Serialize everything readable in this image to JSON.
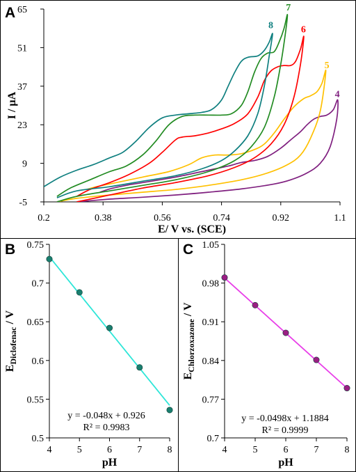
{
  "chart_data": [
    {
      "panel": "A",
      "type": "line",
      "xlabel": "E/ V vs. (SCE)",
      "ylabel": "I / µA",
      "xlim": [
        0.2,
        1.1
      ],
      "ylim": [
        -5,
        65
      ],
      "xticks": [
        "0.2",
        "0.38",
        "0.56",
        "0.74",
        "0.92",
        "1.1"
      ],
      "yticks": [
        "-5",
        "9",
        "23",
        "37",
        "51",
        "65"
      ],
      "grid": false,
      "series": [
        {
          "name": "4",
          "color": "#7f1f7f",
          "forward": [
            [
              0.3,
              -5.0
            ],
            [
              0.4,
              -4.0
            ],
            [
              0.5,
              -3.3
            ],
            [
              0.6,
              -2.5
            ],
            [
              0.7,
              -1.5
            ],
            [
              0.8,
              -0.3
            ],
            [
              0.9,
              1.5
            ],
            [
              0.95,
              3.0
            ],
            [
              1.0,
              5.5
            ],
            [
              1.04,
              9.0
            ],
            [
              1.07,
              15.0
            ],
            [
              1.09,
              25.0
            ],
            [
              1.093,
              32.0
            ]
          ],
          "reverse": [
            [
              1.093,
              32.0
            ],
            [
              1.08,
              28.5
            ],
            [
              1.06,
              26.5
            ],
            [
              1.04,
              26.0
            ],
            [
              1.02,
              25.0
            ],
            [
              1.0,
              23.0
            ],
            [
              0.98,
              20.5
            ],
            [
              0.95,
              17.5
            ],
            [
              0.92,
              14.5
            ],
            [
              0.88,
              11.5
            ],
            [
              0.84,
              10.0
            ],
            [
              0.8,
              9.3
            ],
            [
              0.76,
              8.0
            ],
            [
              0.7,
              6.5
            ],
            [
              0.6,
              4.0
            ],
            [
              0.5,
              2.0
            ],
            [
              0.45,
              1.0
            ],
            [
              0.4,
              -0.3
            ],
            [
              0.37,
              -1.5
            ]
          ]
        },
        {
          "name": "5",
          "color": "#ffc000",
          "forward": [
            [
              0.24,
              -5.0
            ],
            [
              0.3,
              -3.7
            ],
            [
              0.4,
              -2.5
            ],
            [
              0.5,
              -1.5
            ],
            [
              0.6,
              -0.5
            ],
            [
              0.7,
              1.0
            ],
            [
              0.8,
              3.0
            ],
            [
              0.88,
              5.5
            ],
            [
              0.94,
              8.5
            ],
            [
              0.98,
              12.0
            ],
            [
              1.01,
              18.0
            ],
            [
              1.04,
              28.0
            ],
            [
              1.057,
              42.5
            ]
          ],
          "reverse": [
            [
              1.057,
              42.5
            ],
            [
              1.045,
              38.0
            ],
            [
              1.03,
              35.0
            ],
            [
              1.01,
              33.5
            ],
            [
              0.99,
              32.5
            ],
            [
              0.96,
              29.5
            ],
            [
              0.93,
              25.0
            ],
            [
              0.9,
              20.0
            ],
            [
              0.87,
              16.0
            ],
            [
              0.84,
              14.0
            ],
            [
              0.8,
              12.5
            ],
            [
              0.76,
              12.0
            ],
            [
              0.72,
              12.0
            ],
            [
              0.68,
              11.0
            ],
            [
              0.64,
              8.5
            ],
            [
              0.58,
              6.0
            ],
            [
              0.5,
              4.0
            ],
            [
              0.42,
              2.0
            ],
            [
              0.36,
              0.5
            ],
            [
              0.33,
              -0.5
            ]
          ]
        },
        {
          "name": "6",
          "color": "#ff0000",
          "forward": [
            [
              0.3,
              -5.0
            ],
            [
              0.4,
              -2.5
            ],
            [
              0.5,
              0.0
            ],
            [
              0.6,
              2.0
            ],
            [
              0.7,
              4.5
            ],
            [
              0.78,
              7.5
            ],
            [
              0.84,
              11.0
            ],
            [
              0.89,
              16.0
            ],
            [
              0.93,
              23.0
            ],
            [
              0.96,
              33.0
            ],
            [
              0.98,
              45.0
            ],
            [
              0.99,
              55.0
            ]
          ],
          "reverse": [
            [
              0.99,
              55.0
            ],
            [
              0.98,
              50.5
            ],
            [
              0.965,
              46.0
            ],
            [
              0.95,
              44.5
            ],
            [
              0.93,
              44.5
            ],
            [
              0.91,
              44.0
            ],
            [
              0.89,
              42.5
            ],
            [
              0.87,
              39.0
            ],
            [
              0.85,
              33.0
            ],
            [
              0.82,
              27.0
            ],
            [
              0.78,
              23.5
            ],
            [
              0.74,
              21.5
            ],
            [
              0.7,
              20.0
            ],
            [
              0.66,
              19.0
            ],
            [
              0.62,
              18.5
            ],
            [
              0.6,
              17.5
            ],
            [
              0.56,
              13.0
            ],
            [
              0.52,
              9.0
            ],
            [
              0.46,
              5.0
            ],
            [
              0.4,
              2.0
            ],
            [
              0.34,
              -0.5
            ],
            [
              0.3,
              -3.0
            ]
          ]
        },
        {
          "name": "7",
          "color": "#228b22",
          "forward": [
            [
              0.24,
              -5.0
            ],
            [
              0.3,
              -3.0
            ],
            [
              0.4,
              -1.0
            ],
            [
              0.5,
              1.0
            ],
            [
              0.6,
              3.0
            ],
            [
              0.7,
              6.0
            ],
            [
              0.78,
              10.0
            ],
            [
              0.83,
              15.0
            ],
            [
              0.87,
              22.0
            ],
            [
              0.9,
              33.0
            ],
            [
              0.92,
              45.0
            ],
            [
              0.935,
              57.0
            ],
            [
              0.94,
              63.0
            ]
          ],
          "reverse": [
            [
              0.94,
              63.0
            ],
            [
              0.93,
              58.0
            ],
            [
              0.915,
              53.0
            ],
            [
              0.9,
              49.5
            ],
            [
              0.88,
              49.0
            ],
            [
              0.86,
              47.0
            ],
            [
              0.84,
              42.0
            ],
            [
              0.82,
              35.0
            ],
            [
              0.8,
              30.0
            ],
            [
              0.77,
              27.0
            ],
            [
              0.74,
              26.5
            ],
            [
              0.7,
              26.5
            ],
            [
              0.66,
              26.5
            ],
            [
              0.62,
              26.0
            ],
            [
              0.58,
              23.0
            ],
            [
              0.54,
              17.0
            ],
            [
              0.5,
              12.0
            ],
            [
              0.45,
              8.0
            ],
            [
              0.4,
              6.0
            ],
            [
              0.34,
              3.0
            ],
            [
              0.28,
              0.0
            ],
            [
              0.24,
              -3.0
            ]
          ]
        },
        {
          "name": "8",
          "color": "#0e7f7f",
          "forward": [
            [
              0.24,
              -3.5
            ],
            [
              0.3,
              -1.0
            ],
            [
              0.4,
              0.5
            ],
            [
              0.5,
              2.5
            ],
            [
              0.6,
              4.5
            ],
            [
              0.68,
              7.0
            ],
            [
              0.74,
              10.0
            ],
            [
              0.78,
              13.5
            ],
            [
              0.82,
              19.0
            ],
            [
              0.85,
              27.0
            ],
            [
              0.87,
              37.0
            ],
            [
              0.885,
              48.0
            ],
            [
              0.895,
              56.0
            ]
          ],
          "reverse": [
            [
              0.895,
              56.0
            ],
            [
              0.885,
              53.0
            ],
            [
              0.87,
              50.0
            ],
            [
              0.85,
              48.0
            ],
            [
              0.82,
              47.5
            ],
            [
              0.8,
              46.0
            ],
            [
              0.78,
              42.0
            ],
            [
              0.76,
              37.0
            ],
            [
              0.74,
              32.0
            ],
            [
              0.71,
              28.5
            ],
            [
              0.68,
              27.5
            ],
            [
              0.64,
              27.0
            ],
            [
              0.6,
              26.5
            ],
            [
              0.56,
              25.5
            ],
            [
              0.52,
              22.0
            ],
            [
              0.48,
              17.0
            ],
            [
              0.44,
              13.0
            ],
            [
              0.4,
              11.0
            ],
            [
              0.35,
              8.5
            ],
            [
              0.3,
              6.5
            ],
            [
              0.25,
              4.0
            ],
            [
              0.2,
              0.5
            ]
          ]
        }
      ]
    },
    {
      "panel": "B",
      "type": "scatter",
      "xlabel": "pH",
      "ylabel_main": "E",
      "ylabel_sub": "Diclofenac",
      "ylabel_tail": " / V",
      "xlim": [
        4,
        8
      ],
      "ylim": [
        0.5,
        0.75
      ],
      "xticks": [
        "4",
        "5",
        "6",
        "7",
        "8"
      ],
      "yticks": [
        "0.5",
        "0.55",
        "0.6",
        "0.65",
        "0.7",
        "0.75"
      ],
      "x": [
        4,
        5,
        6,
        7,
        8
      ],
      "y": [
        0.731,
        0.688,
        0.642,
        0.591,
        0.536
      ],
      "trendline": {
        "slope": -0.048,
        "intercept": 0.926,
        "color": "#2ee6d8"
      },
      "marker_color": "#1a7f6f",
      "equation": "y = -0.048x + 0.926",
      "r2": "R² = 0.9983"
    },
    {
      "panel": "C",
      "type": "scatter",
      "xlabel": "pH",
      "ylabel_main": "E",
      "ylabel_sub": "Chlorzoxazone",
      "ylabel_tail": " / V",
      "xlim": [
        4,
        8
      ],
      "ylim": [
        0.7,
        1.05
      ],
      "xticks": [
        "4",
        "5",
        "6",
        "7",
        "8"
      ],
      "yticks": [
        "0.7",
        "0.77",
        "0.84",
        "0.91",
        "0.98",
        "1.05"
      ],
      "x": [
        4,
        5,
        6,
        7,
        8
      ],
      "y": [
        0.99,
        0.94,
        0.89,
        0.841,
        0.79
      ],
      "trendline": {
        "slope": -0.0498,
        "intercept": 1.1884,
        "color": "#e83ee8"
      },
      "marker_color": "#9b1e84",
      "equation": "y = -0.0498x + 1.1884",
      "r2": "R² = 0.9999"
    }
  ]
}
